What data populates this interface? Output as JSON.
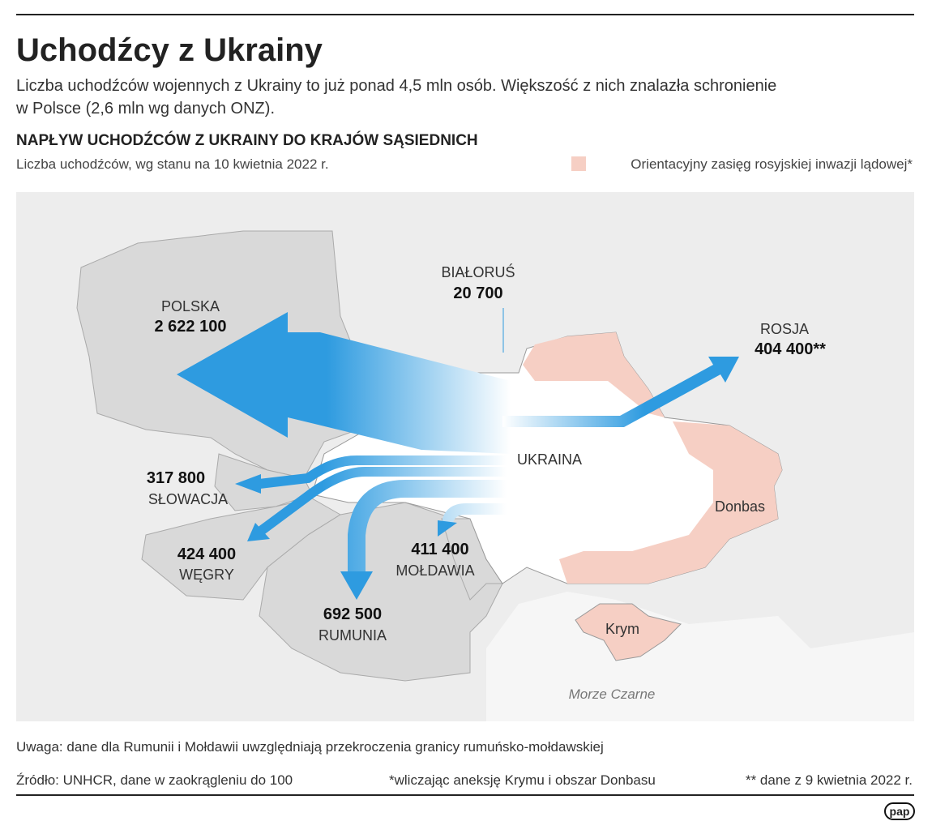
{
  "header": {
    "title": "Uchodźcy z Ukrainy",
    "lead_lines": [
      "Liczba uchodźców wojennych z Ukrainy to już ponad 4,5 mln osób. Większość z nich znalazła schronienie",
      "w Polsce (2,6 mln wg danych ONZ)."
    ],
    "section_title": "NAPŁYW UCHODŹCÓW Z UKRAINY DO KRAJÓW SĄSIEDNICH",
    "subtitle": "Liczba uchodźców, wg stanu na 10 kwietnia 2022 r.",
    "legend": "Orientacyjny zasięg rosyjskiej inwazji lądowej*"
  },
  "map": {
    "countries": [
      {
        "name": "POLSKA",
        "value": "2 622 100"
      },
      {
        "name": "BIAŁORUŚ",
        "value": "20 700"
      },
      {
        "name": "ROSJA",
        "value": "404 400**"
      },
      {
        "name": "SŁOWACJA",
        "value": "317 800"
      },
      {
        "name": "WĘGRY",
        "value": "424 400"
      },
      {
        "name": "MOŁDAWIA",
        "value": "411 400"
      },
      {
        "name": "RUMUNIA",
        "value": "692 500"
      }
    ],
    "labels": {
      "ukraine": "UKRAINA",
      "donbas": "Donbas",
      "crimea": "Krym",
      "sea": "Morze Czarne"
    }
  },
  "footer": {
    "note": "Uwaga: dane dla Rumunii i Mołdawii uwzględniają przekroczenia granicy rumuńsko-mołdawskiej",
    "source": "Źródło: UNHCR, dane w zaokrągleniu do 100",
    "footnote1": "*wliczając aneksję Krymu i obszar Donbasu",
    "footnote2": "** dane z 9 kwietnia 2022 r.",
    "logo": "pap"
  }
}
